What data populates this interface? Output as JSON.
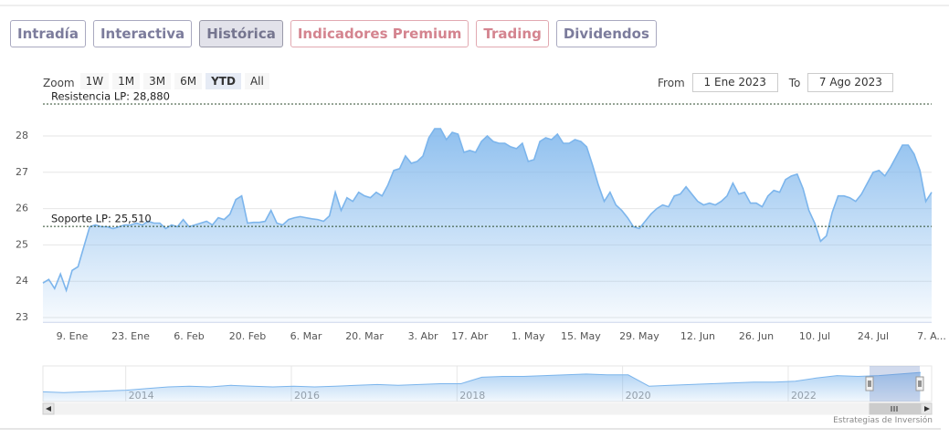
{
  "tabs": [
    "Intradía",
    "Interactiva",
    "Histórica",
    "Indicadores Premium",
    "Trading",
    "Dividendos"
  ],
  "zoom": {
    "label": "Zoom",
    "buttons": [
      "1W",
      "1M",
      "3M",
      "6M",
      "YTD",
      "All"
    ]
  },
  "date_range": {
    "from_label": "From",
    "from": "1 Ene 2023",
    "to_label": "To",
    "to": "7 Ago 2023"
  },
  "credit": "Estrategias de Inversión",
  "chart_data": {
    "type": "area",
    "color": "#7cb5ec",
    "categories": [
      null,
      null,
      null,
      null,
      null,
      "9. Ene",
      null,
      null,
      null,
      null,
      null,
      null,
      null,
      null,
      null,
      "23. Ene",
      null,
      null,
      null,
      null,
      null,
      null,
      null,
      null,
      null,
      "6. Feb",
      null,
      null,
      null,
      null,
      null,
      null,
      null,
      null,
      null,
      "20. Feb",
      null,
      null,
      null,
      null,
      null,
      null,
      null,
      null,
      null,
      "6. Mar",
      null,
      null,
      null,
      null,
      null,
      null,
      null,
      null,
      null,
      "20. Mar",
      null,
      null,
      null,
      null,
      null,
      null,
      null,
      null,
      null,
      "3. Abr",
      null,
      null,
      null,
      null,
      null,
      null,
      null,
      "17. Abr",
      null,
      null,
      null,
      null,
      null,
      null,
      null,
      null,
      null,
      "1. May",
      null,
      null,
      null,
      null,
      null,
      null,
      null,
      null,
      "15. May",
      null,
      null,
      null,
      null,
      null,
      null,
      null,
      null,
      null,
      "29. May",
      null,
      null,
      null,
      null,
      null,
      null,
      null,
      null,
      null,
      "12. Jun",
      null,
      null,
      null,
      null,
      null,
      null,
      null,
      null,
      null,
      "26. Jun",
      null,
      null,
      null,
      null,
      null,
      null,
      null,
      null,
      null,
      "10. Jul",
      null,
      null,
      null,
      null,
      null,
      null,
      null,
      null,
      null,
      "24. Jul",
      null,
      null,
      null,
      null,
      null,
      null,
      null,
      null,
      null,
      "7. A..."
    ],
    "values": [
      23.95,
      24.05,
      23.8,
      24.2,
      23.75,
      24.3,
      24.4,
      24.95,
      25.5,
      25.55,
      25.5,
      25.5,
      25.45,
      25.5,
      25.55,
      25.55,
      25.6,
      25.55,
      25.65,
      25.6,
      25.6,
      25.45,
      25.55,
      25.5,
      25.7,
      25.5,
      25.55,
      25.6,
      25.65,
      25.55,
      25.75,
      25.7,
      25.85,
      26.25,
      26.35,
      25.6,
      25.62,
      25.62,
      25.65,
      25.95,
      25.6,
      25.55,
      25.7,
      25.75,
      25.78,
      25.75,
      25.72,
      25.7,
      25.65,
      25.8,
      26.45,
      25.95,
      26.3,
      26.2,
      26.45,
      26.35,
      26.3,
      26.45,
      26.35,
      26.65,
      27.05,
      27.1,
      27.45,
      27.25,
      27.3,
      27.45,
      27.95,
      28.2,
      28.2,
      27.9,
      28.1,
      28.05,
      27.55,
      27.6,
      27.55,
      27.85,
      28.0,
      27.85,
      27.8,
      27.8,
      27.7,
      27.65,
      27.8,
      27.3,
      27.35,
      27.85,
      27.95,
      27.9,
      28.05,
      27.8,
      27.8,
      27.9,
      27.85,
      27.7,
      27.2,
      26.65,
      26.2,
      26.45,
      26.1,
      25.95,
      25.75,
      25.5,
      25.45,
      25.65,
      25.85,
      26.0,
      26.1,
      26.05,
      26.35,
      26.4,
      26.6,
      26.4,
      26.2,
      26.1,
      26.15,
      26.1,
      26.2,
      26.35,
      26.7,
      26.4,
      26.45,
      26.15,
      26.15,
      26.05,
      26.35,
      26.5,
      26.45,
      26.8,
      26.9,
      26.95,
      26.55,
      25.95,
      25.6,
      25.1,
      25.25,
      25.9,
      26.35,
      26.35,
      26.3,
      26.2,
      26.4,
      26.7,
      27.0,
      27.05,
      26.9,
      27.15,
      27.45,
      27.75,
      27.75,
      27.5,
      27.05,
      26.2,
      26.45
    ],
    "ylim": [
      22.87,
      29.0
    ],
    "yticks": [
      23,
      24,
      25,
      26,
      27,
      28
    ],
    "grid": true,
    "plot_lines": [
      {
        "value": 28.88,
        "label": "Resistencia LP: 28,880"
      },
      {
        "value": 25.51,
        "label": "Soporte LP: 25,510"
      }
    ],
    "navigator": {
      "xlim": [
        2013,
        2023.6
      ],
      "xticks": [
        2014,
        2016,
        2018,
        2020,
        2022
      ],
      "ylim": [
        10,
        32
      ],
      "values": [
        16,
        15.5,
        16,
        16.5,
        17,
        18,
        19,
        19.5,
        19,
        20,
        19.5,
        19,
        19.5,
        19,
        19.5,
        20,
        20.5,
        20,
        20.5,
        21,
        21,
        25,
        25.5,
        25.5,
        26,
        26.5,
        27,
        26.5,
        26.5,
        19.5,
        20,
        20.5,
        21,
        21.5,
        22,
        22,
        22.5,
        24.5,
        26,
        25.5,
        26,
        27,
        28
      ]
    }
  }
}
